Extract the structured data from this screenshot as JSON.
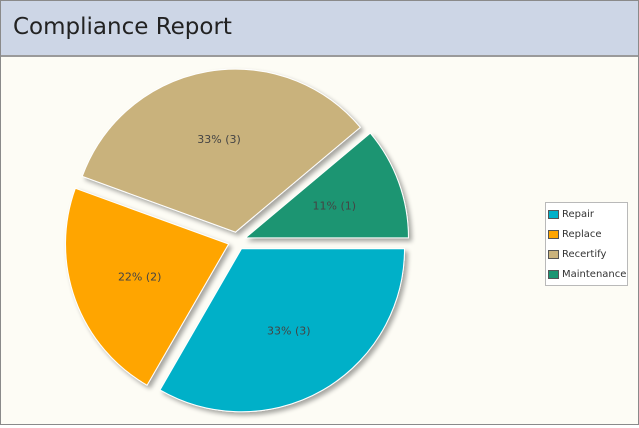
{
  "header": {
    "title": "Compliance Report"
  },
  "chart_data": {
    "type": "pie",
    "title": "",
    "categories": [
      "Repair",
      "Replace",
      "Recertify",
      "Maintenance"
    ],
    "values": [
      3,
      2,
      3,
      1
    ],
    "labels": [
      "33% (3)",
      "22% (2)",
      "33% (3)",
      "11% (1)"
    ],
    "colors": [
      "#00b0c8",
      "#ffa500",
      "#c9b27c",
      "#1b9572"
    ],
    "exploded": true,
    "legend_position": "right"
  }
}
